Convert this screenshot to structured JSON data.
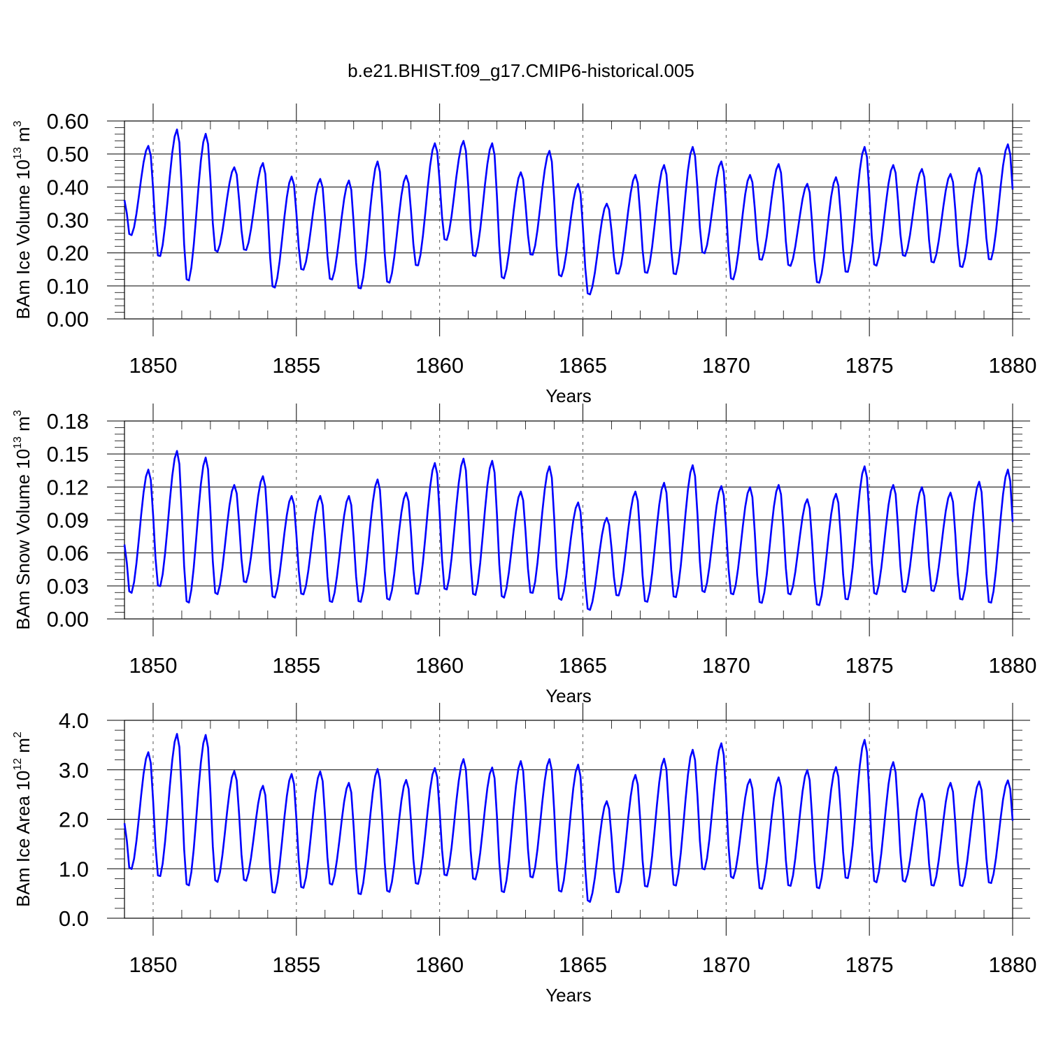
{
  "title": "b.e21.BHIST.f09_g17.CMIP6-historical.005",
  "chart_data": [
    {
      "type": "line",
      "ylabel_main": "BAm Ice Volume 10",
      "ylabel_exp": "13",
      "ylabel_unit": " m",
      "ylabel_unit_exp": "3",
      "xlabel": "Years",
      "xlim": [
        1849.0,
        1880.0
      ],
      "ylim": [
        0.0,
        0.6
      ],
      "x_ticks": [
        1850,
        1855,
        1860,
        1865,
        1870,
        1875,
        1880
      ],
      "y_ticks": [
        "0.00",
        "0.10",
        "0.20",
        "0.30",
        "0.40",
        "0.50",
        "0.60"
      ],
      "line_color": "#0000ff",
      "maxima": [
        0.525,
        0.575,
        0.562,
        0.46,
        0.473,
        0.432,
        0.425,
        0.42,
        0.478,
        0.435,
        0.533,
        0.54,
        0.533,
        0.445,
        0.51,
        0.41,
        0.35,
        0.437,
        0.467,
        0.522,
        0.478,
        0.437,
        0.47,
        0.41,
        0.43,
        0.522,
        0.467,
        0.455,
        0.44,
        0.458,
        0.53
      ],
      "minima": [
        0.25,
        0.185,
        0.11,
        0.2,
        0.205,
        0.09,
        0.145,
        0.115,
        0.087,
        0.105,
        0.157,
        0.235,
        0.185,
        0.118,
        0.19,
        0.125,
        0.07,
        0.133,
        0.135,
        0.13,
        0.195,
        0.115,
        0.175,
        0.157,
        0.105,
        0.137,
        0.157,
        0.187,
        0.167,
        0.153,
        0.175
      ],
      "series": [
        {
          "values": []
        }
      ]
    },
    {
      "type": "line",
      "ylabel_main": "BAm Snow Volume 10",
      "ylabel_exp": "13",
      "ylabel_unit": " m",
      "ylabel_unit_exp": "3",
      "xlabel": "Years",
      "xlim": [
        1849.0,
        1880.0
      ],
      "ylim": [
        0.0,
        0.18
      ],
      "x_ticks": [
        1850,
        1855,
        1860,
        1865,
        1870,
        1875,
        1880
      ],
      "y_ticks": [
        "0.00",
        "0.03",
        "0.06",
        "0.09",
        "0.12",
        "0.15",
        "0.18"
      ],
      "line_color": "#0000ff",
      "maxima": [
        0.136,
        0.153,
        0.147,
        0.122,
        0.13,
        0.112,
        0.112,
        0.112,
        0.127,
        0.115,
        0.142,
        0.146,
        0.144,
        0.116,
        0.139,
        0.106,
        0.092,
        0.116,
        0.124,
        0.14,
        0.121,
        0.12,
        0.122,
        0.109,
        0.114,
        0.139,
        0.122,
        0.12,
        0.115,
        0.125,
        0.136
      ],
      "minima": [
        0.022,
        0.028,
        0.013,
        0.021,
        0.032,
        0.018,
        0.021,
        0.014,
        0.014,
        0.016,
        0.021,
        0.025,
        0.02,
        0.018,
        0.022,
        0.016,
        0.007,
        0.02,
        0.014,
        0.018,
        0.023,
        0.021,
        0.013,
        0.021,
        0.011,
        0.016,
        0.021,
        0.023,
        0.024,
        0.016,
        0.013
      ],
      "series": [
        {
          "values": []
        }
      ]
    },
    {
      "type": "line",
      "ylabel_main": "BAm Ice Area 10",
      "ylabel_exp": "12",
      "ylabel_unit": " m",
      "ylabel_unit_exp": "2",
      "xlabel": "Years",
      "xlim": [
        1849.0,
        1880.0
      ],
      "ylim": [
        0.0,
        4.0
      ],
      "x_ticks": [
        1850,
        1855,
        1860,
        1865,
        1870,
        1875,
        1880
      ],
      "y_ticks": [
        "0.0",
        "1.0",
        "2.0",
        "3.0",
        "4.0"
      ],
      "line_color": "#0000ff",
      "maxima": [
        3.36,
        3.73,
        3.71,
        2.98,
        2.68,
        2.92,
        2.97,
        2.74,
        3.02,
        2.8,
        3.04,
        3.22,
        3.05,
        3.18,
        3.22,
        3.11,
        2.37,
        2.9,
        3.23,
        3.41,
        3.54,
        2.81,
        2.85,
        3.0,
        3.06,
        3.61,
        3.16,
        2.52,
        2.74,
        2.77,
        2.79
      ],
      "minima": [
        0.96,
        0.81,
        0.62,
        0.7,
        0.73,
        0.48,
        0.58,
        0.65,
        0.45,
        0.5,
        0.66,
        0.83,
        0.75,
        0.49,
        0.79,
        0.5,
        0.3,
        0.49,
        0.6,
        0.62,
        0.95,
        0.78,
        0.56,
        0.62,
        0.57,
        0.77,
        0.69,
        0.71,
        0.63,
        0.62,
        0.68
      ],
      "series": [
        {
          "values": []
        }
      ]
    }
  ]
}
